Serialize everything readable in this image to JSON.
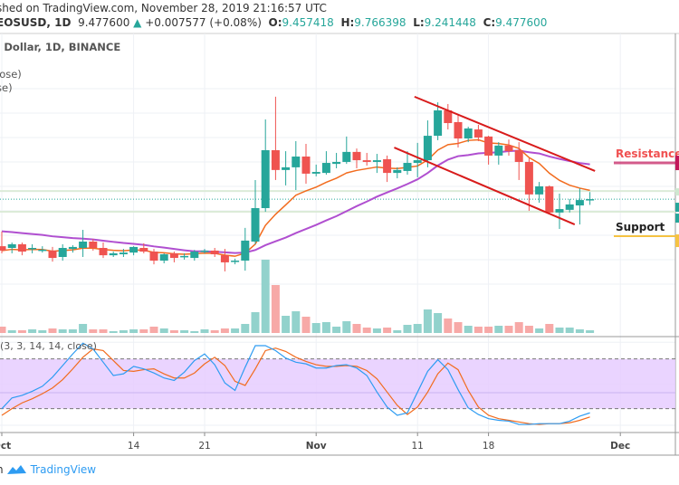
{
  "header": {
    "published": "shed on TradingView.com, November 28, 2019 21:16:57 UTC",
    "symbol": "EOSUSD, 1D",
    "price": "9.477600",
    "change": "+0.007577 (+0.08%)",
    "o_label": "O:",
    "o": "9.457418",
    "h_label": "H:",
    "h": "9.766398",
    "l_label": "L:",
    "l": "9.241448",
    "c_label": "C:",
    "c": "9.477600"
  },
  "legend": {
    "title": ". Dollar, 1D, BINANCE",
    "ma1": "lose)",
    "ma2": "se)",
    "stoch": "(3, 3, 14, 14, close)"
  },
  "annotations": {
    "resistance": "Resistance",
    "support": "Support"
  },
  "footer": {
    "prefix": "h",
    "brand": "TradingView"
  },
  "colors": {
    "up": "#26a69a",
    "down": "#ef5350",
    "ema": "#f26b1d",
    "sma": "#b04fd0",
    "trend": "#d81b1b",
    "resistance": "#c2185b",
    "support": "#f5c242",
    "k": "#2e9cf2",
    "d": "#f26b1d",
    "band": "#e6ccff"
  },
  "chart_data": [
    {
      "type": "candlestick",
      "title": "",
      "x_ticks": [
        "Oct",
        "14",
        "21",
        "Nov",
        "11",
        "18",
        "Dec"
      ],
      "x_tick_days": [
        0,
        13,
        20,
        31,
        41,
        48,
        61
      ],
      "ohlc": [
        [
          7.55,
          7.37,
          8.15,
          7.26
        ],
        [
          7.48,
          7.63,
          7.7,
          7.26
        ],
        [
          7.63,
          7.33,
          7.7,
          7.18
        ],
        [
          7.44,
          7.48,
          7.63,
          7.26
        ],
        [
          7.4,
          7.41,
          7.55,
          7.29
        ],
        [
          7.37,
          7.07,
          7.52,
          6.92
        ],
        [
          7.11,
          7.48,
          7.63,
          6.96
        ],
        [
          7.44,
          7.52,
          7.59,
          7.29
        ],
        [
          7.48,
          7.74,
          8.22,
          7.11
        ],
        [
          7.74,
          7.48,
          7.85,
          7.37
        ],
        [
          7.48,
          7.18,
          7.7,
          7.07
        ],
        [
          7.18,
          7.26,
          7.33,
          7.11
        ],
        [
          7.22,
          7.29,
          7.44,
          7.11
        ],
        [
          7.29,
          7.52,
          7.55,
          7.18
        ],
        [
          7.48,
          7.33,
          7.67,
          7.26
        ],
        [
          7.33,
          6.96,
          7.44,
          6.81
        ],
        [
          6.96,
          7.22,
          7.26,
          6.85
        ],
        [
          7.26,
          7.07,
          7.33,
          6.89
        ],
        [
          7.13,
          7.15,
          7.26,
          7.0
        ],
        [
          7.07,
          7.33,
          7.4,
          6.96
        ],
        [
          7.33,
          7.37,
          7.44,
          7.26
        ],
        [
          7.37,
          7.22,
          7.48,
          7.11
        ],
        [
          7.18,
          6.89,
          7.44,
          6.52
        ],
        [
          6.92,
          6.96,
          7.04,
          6.81
        ],
        [
          6.96,
          7.78,
          8.3,
          6.55
        ],
        [
          7.74,
          9.11,
          10.26,
          7.63
        ],
        [
          9.11,
          11.48,
          12.74,
          8.96
        ],
        [
          11.48,
          10.67,
          13.67,
          10.26
        ],
        [
          10.67,
          10.78,
          11.44,
          10.04
        ],
        [
          10.78,
          11.22,
          11.85,
          9.85
        ],
        [
          11.22,
          10.52,
          11.74,
          10.11
        ],
        [
          10.52,
          10.59,
          10.89,
          10.41
        ],
        [
          10.55,
          10.96,
          11.44,
          10.48
        ],
        [
          10.92,
          11.0,
          11.37,
          10.74
        ],
        [
          11.0,
          11.41,
          12.04,
          10.92
        ],
        [
          11.41,
          11.07,
          11.55,
          10.74
        ],
        [
          11.07,
          11.0,
          11.37,
          10.85
        ],
        [
          11.0,
          11.07,
          11.33,
          10.55
        ],
        [
          11.11,
          10.55,
          11.26,
          10.18
        ],
        [
          10.55,
          10.67,
          10.78,
          10.33
        ],
        [
          10.63,
          10.96,
          11.44,
          10.48
        ],
        [
          10.96,
          11.07,
          11.78,
          10.37
        ],
        [
          11.07,
          12.07,
          12.7,
          10.78
        ],
        [
          12.07,
          13.11,
          13.44,
          11.89
        ],
        [
          13.11,
          12.59,
          13.37,
          12.33
        ],
        [
          12.63,
          11.96,
          12.92,
          11.59
        ],
        [
          11.96,
          12.37,
          12.44,
          11.81
        ],
        [
          12.33,
          12.0,
          12.52,
          11.85
        ],
        [
          12.04,
          11.26,
          12.07,
          10.89
        ],
        [
          11.26,
          11.67,
          11.81,
          10.89
        ],
        [
          11.67,
          11.44,
          11.92,
          11.26
        ],
        [
          11.48,
          11.0,
          11.81,
          10.26
        ],
        [
          11.0,
          9.67,
          11.15,
          9.0
        ],
        [
          9.67,
          10.0,
          10.18,
          9.33
        ],
        [
          10.0,
          8.93,
          10.04,
          8.89
        ],
        [
          8.93,
          9.07,
          9.7,
          8.26
        ],
        [
          9.04,
          9.26,
          9.48,
          8.93
        ],
        [
          9.22,
          9.44,
          9.92,
          8.44
        ],
        [
          9.457418,
          9.4776,
          9.766398,
          9.241448
        ]
      ],
      "volume": [
        7,
        3,
        3,
        4,
        3,
        5,
        4,
        4,
        10,
        4,
        4,
        2,
        3,
        4,
        4,
        7,
        5,
        3,
        3,
        2,
        4,
        3,
        5,
        5,
        10,
        23,
        81,
        53,
        19,
        24,
        18,
        11,
        12,
        7,
        13,
        10,
        6,
        5,
        6,
        3,
        9,
        10,
        26,
        22,
        16,
        12,
        8,
        7,
        7,
        8,
        8,
        12,
        8,
        5,
        10,
        6,
        6,
        4,
        3
      ],
      "last_price": 9.4776,
      "resistance": 10.96,
      "support": 7.96,
      "zones": [
        9.81,
        8.96
      ],
      "trendlines": [
        [
          [
            40.7,
            13.67
          ],
          [
            58.5,
            10.63
          ]
        ],
        [
          [
            38.7,
            11.59
          ],
          [
            56.5,
            8.44
          ]
        ]
      ]
    },
    {
      "type": "line",
      "title": "(3, 3, 14, 14, close)",
      "ylim": [
        0,
        100
      ],
      "bands": [
        20,
        80
      ],
      "series": [
        {
          "values": [
            20,
            33,
            36,
            41,
            47,
            58,
            72,
            86,
            99,
            92,
            76,
            60,
            62,
            71,
            68,
            63,
            57,
            54,
            64,
            78,
            86,
            73,
            51,
            42,
            70,
            96,
            96,
            90,
            81,
            76,
            74,
            69,
            69,
            72,
            73,
            69,
            60,
            40,
            22,
            12,
            15,
            40,
            65,
            79,
            67,
            43,
            21,
            13,
            8,
            6,
            5,
            1,
            1,
            2,
            2,
            2,
            5,
            11,
            15
          ]
        },
        {
          "values": [
            12,
            20,
            27,
            32,
            38,
            45,
            55,
            68,
            82,
            92,
            90,
            78,
            66,
            65,
            67,
            68,
            62,
            57,
            57,
            63,
            74,
            82,
            72,
            53,
            48,
            68,
            90,
            93,
            89,
            82,
            77,
            73,
            71,
            71,
            72,
            71,
            66,
            56,
            40,
            24,
            13,
            22,
            40,
            62,
            75,
            67,
            42,
            22,
            12,
            8,
            6,
            4,
            2,
            1,
            2,
            2,
            3,
            6,
            10
          ]
        }
      ]
    }
  ]
}
